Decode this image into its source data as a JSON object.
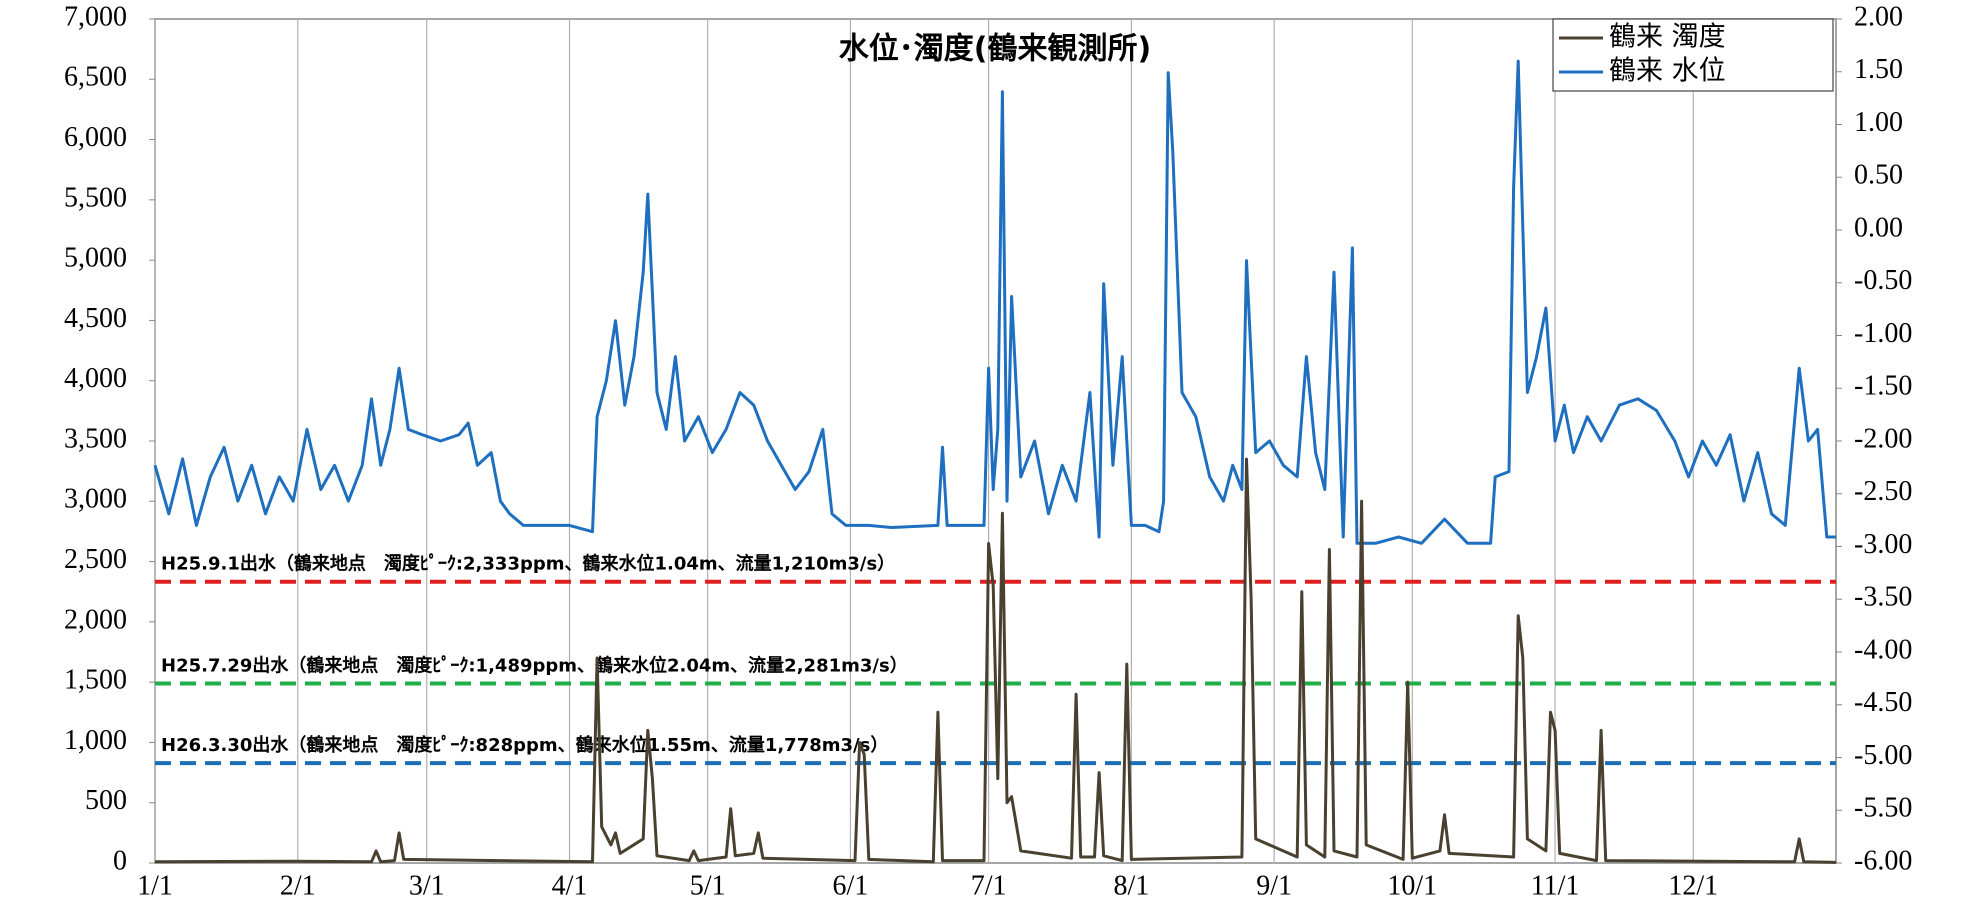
{
  "chart_data": {
    "type": "line",
    "title": "水位･濁度(鶴来観測所)",
    "xlim": [
      0,
      365
    ],
    "xticks": [
      {
        "value": 0,
        "label": "1/1"
      },
      {
        "value": 31,
        "label": "2/1"
      },
      {
        "value": 59,
        "label": "3/1"
      },
      {
        "value": 90,
        "label": "4/1"
      },
      {
        "value": 120,
        "label": "5/1"
      },
      {
        "value": 151,
        "label": "6/1"
      },
      {
        "value": 181,
        "label": "7/1"
      },
      {
        "value": 212,
        "label": "8/1"
      },
      {
        "value": 243,
        "label": "9/1"
      },
      {
        "value": 273,
        "label": "10/1"
      },
      {
        "value": 304,
        "label": "11/1"
      },
      {
        "value": 334,
        "label": "12/1"
      }
    ],
    "ylim": [
      0,
      7000
    ],
    "yticks": [
      0,
      500,
      {
        "value": 1000,
        "label": "1,000"
      },
      {
        "value": 1500,
        "label": "1,500"
      },
      {
        "value": 2000,
        "label": "2,000"
      },
      {
        "value": 2500,
        "label": "2,500"
      },
      {
        "value": 3000,
        "label": "3,000"
      },
      {
        "value": 3500,
        "label": "3,500"
      },
      {
        "value": 4000,
        "label": "4,000"
      },
      {
        "value": 4500,
        "label": "4,500"
      },
      {
        "value": 5000,
        "label": "5,000"
      },
      {
        "value": 5500,
        "label": "5,500"
      },
      {
        "value": 6000,
        "label": "6,000"
      },
      {
        "value": 6500,
        "label": "6,500"
      },
      {
        "value": 7000,
        "label": "7,000"
      }
    ],
    "y2lim": [
      -6,
      2
    ],
    "y2ticks": [
      {
        "value": -6,
        "label": "-6.00"
      },
      {
        "value": -5.5,
        "label": "-5.50"
      },
      {
        "value": -5,
        "label": "-5.00"
      },
      {
        "value": -4.5,
        "label": "-4.50"
      },
      {
        "value": -4,
        "label": "-4.00"
      },
      {
        "value": -3.5,
        "label": "-3.50"
      },
      {
        "value": -3,
        "label": "-3.00"
      },
      {
        "value": -2.5,
        "label": "-2.50"
      },
      {
        "value": -2,
        "label": "-2.00"
      },
      {
        "value": -1.5,
        "label": "-1.50"
      },
      {
        "value": -1,
        "label": "-1.00"
      },
      {
        "value": -0.5,
        "label": "-0.50"
      },
      {
        "value": 0,
        "label": "0.00"
      },
      {
        "value": 0.5,
        "label": "0.50"
      },
      {
        "value": 1,
        "label": "1.00"
      },
      {
        "value": 1.5,
        "label": "1.50"
      },
      {
        "value": 2,
        "label": "2.00"
      }
    ],
    "grid": {
      "x": true,
      "y": false
    },
    "legend": "top-right",
    "series": [
      {
        "name": "鶴来 濁度",
        "color": "#4a4030",
        "axis": "y",
        "x": [
          0,
          30,
          47,
          48,
          49,
          52,
          53,
          54,
          95,
          96,
          97,
          99,
          100,
          101,
          106,
          107,
          108,
          109,
          116,
          117,
          118,
          124,
          125,
          126,
          130,
          131,
          132,
          152,
          153,
          154,
          155,
          169,
          170,
          171,
          180,
          181,
          182,
          183,
          184,
          185,
          186,
          188,
          199,
          200,
          201,
          204,
          205,
          206,
          210,
          211,
          212,
          236,
          237,
          238,
          239,
          248,
          249,
          250,
          254,
          255,
          256,
          261,
          262,
          263,
          271,
          272,
          273,
          279,
          280,
          281,
          295,
          296,
          297,
          298,
          302,
          303,
          304,
          305,
          313,
          314,
          315,
          356,
          357,
          358,
          365
        ],
        "values": [
          10,
          15,
          10,
          100,
          10,
          20,
          250,
          30,
          10,
          1700,
          300,
          150,
          250,
          80,
          200,
          1100,
          700,
          60,
          20,
          100,
          20,
          50,
          450,
          60,
          80,
          250,
          40,
          20,
          1000,
          900,
          30,
          10,
          1250,
          20,
          20,
          2650,
          2300,
          700,
          2900,
          500,
          550,
          100,
          40,
          1400,
          50,
          50,
          750,
          60,
          20,
          1650,
          30,
          50,
          3350,
          2200,
          200,
          50,
          2250,
          150,
          50,
          2600,
          100,
          50,
          3000,
          150,
          30,
          1500,
          40,
          100,
          400,
          80,
          50,
          2050,
          1700,
          200,
          100,
          1250,
          1100,
          80,
          20,
          1100,
          20,
          10,
          200,
          10,
          5
        ]
      },
      {
        "name": "鶴来 水位",
        "color": "#1f6fc0",
        "axis": "y2",
        "x": [
          0,
          3,
          6,
          9,
          12,
          15,
          18,
          21,
          24,
          27,
          30,
          33,
          36,
          39,
          42,
          45,
          47,
          49,
          51,
          53,
          55,
          58,
          62,
          66,
          68,
          70,
          73,
          75,
          77,
          80,
          85,
          90,
          95,
          96,
          98,
          100,
          102,
          104,
          106,
          107,
          109,
          111,
          113,
          115,
          118,
          121,
          124,
          127,
          130,
          133,
          136,
          139,
          142,
          145,
          147,
          150,
          155,
          160,
          170,
          171,
          172,
          180,
          181,
          182,
          183,
          184,
          185,
          186,
          188,
          191,
          194,
          197,
          200,
          203,
          205,
          206,
          208,
          210,
          212,
          215,
          218,
          219,
          220,
          221,
          223,
          226,
          229,
          232,
          234,
          236,
          237,
          239,
          242,
          245,
          248,
          250,
          252,
          254,
          256,
          258,
          260,
          261,
          265,
          270,
          275,
          280,
          285,
          290,
          291,
          294,
          295,
          296,
          298,
          300,
          302,
          304,
          306,
          308,
          311,
          314,
          318,
          322,
          326,
          330,
          333,
          336,
          339,
          342,
          345,
          348,
          351,
          354,
          357,
          359,
          361,
          363,
          365
        ],
        "values": [
          -2.23,
          -2.69,
          -2.17,
          -2.8,
          -2.34,
          -2.06,
          -2.57,
          -2.23,
          -2.69,
          -2.34,
          -2.57,
          -1.89,
          -2.46,
          -2.23,
          -2.57,
          -2.23,
          -1.6,
          -2.23,
          -1.89,
          -1.31,
          -1.89,
          -1.94,
          -2.0,
          -1.94,
          -1.83,
          -2.23,
          -2.11,
          -2.57,
          -2.69,
          -2.8,
          -2.8,
          -2.8,
          -2.86,
          -1.77,
          -1.43,
          -0.86,
          -1.66,
          -1.2,
          -0.4,
          0.34,
          -1.54,
          -1.89,
          -1.2,
          -2.0,
          -1.77,
          -2.11,
          -1.89,
          -1.54,
          -1.66,
          -2.0,
          -2.23,
          -2.46,
          -2.29,
          -1.89,
          -2.69,
          -2.8,
          -2.8,
          -2.82,
          -2.8,
          -2.06,
          -2.8,
          -2.8,
          -1.31,
          -2.46,
          -1.89,
          1.31,
          -2.57,
          -0.63,
          -2.34,
          -2.0,
          -2.69,
          -2.23,
          -2.57,
          -1.54,
          -2.91,
          -0.51,
          -2.23,
          -1.2,
          -2.8,
          -2.8,
          -2.86,
          -2.57,
          1.49,
          0.74,
          -1.54,
          -1.77,
          -2.34,
          -2.57,
          -2.23,
          -2.46,
          -0.29,
          -2.11,
          -2.0,
          -2.23,
          -2.34,
          -1.2,
          -2.11,
          -2.46,
          -0.4,
          -2.91,
          -0.17,
          -2.97,
          -2.97,
          -2.91,
          -2.97,
          -2.74,
          -2.97,
          -2.97,
          -2.34,
          -2.29,
          0.4,
          1.6,
          -1.54,
          -1.2,
          -0.74,
          -2.0,
          -1.66,
          -2.11,
          -1.77,
          -2.0,
          -1.66,
          -1.6,
          -1.71,
          -2.0,
          -2.34,
          -2.0,
          -2.23,
          -1.94,
          -2.57,
          -2.11,
          -2.69,
          -2.8,
          -1.31,
          -2.0,
          -1.89,
          -2.91,
          -2.91
        ]
      }
    ],
    "reference_lines": [
      {
        "value": 2333,
        "color": "#e02020",
        "label": "H25.9.1出水（鶴来地点　濁度ﾋﾟｰｸ:2,333ppm、鶴来水位1.04m、流量1,210m3/s）"
      },
      {
        "value": 1489,
        "color": "#1fae48",
        "label": "H25.7.29出水（鶴来地点　濁度ﾋﾟｰｸ:1,489ppm、鶴来水位2.04m、流量2,281m3/s）"
      },
      {
        "value": 828,
        "color": "#1a6fb5",
        "label": "H26.3.30出水（鶴来地点　濁度ﾋﾟｰｸ:828ppm、鶴来水位1.55m、流量1,778m3/s）"
      }
    ]
  }
}
